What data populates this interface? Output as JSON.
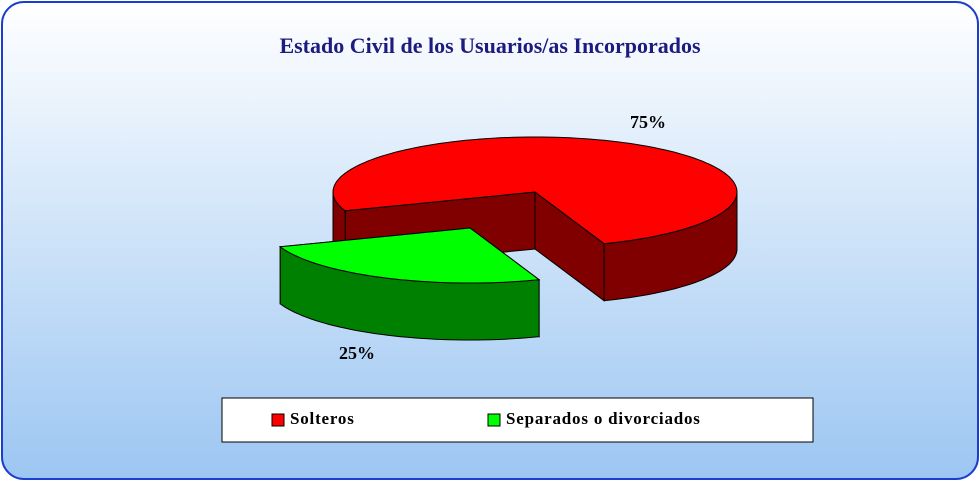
{
  "chart_data": {
    "type": "pie",
    "title": "Estado Civil de los Usuarios/as Incorporados",
    "categories": [
      "Solteros",
      "Separados o divorciados"
    ],
    "values": [
      75,
      25
    ],
    "value_labels": [
      "75%",
      "25%"
    ],
    "colors": [
      "#ff0000",
      "#00ff00"
    ],
    "legend": "bottom"
  }
}
